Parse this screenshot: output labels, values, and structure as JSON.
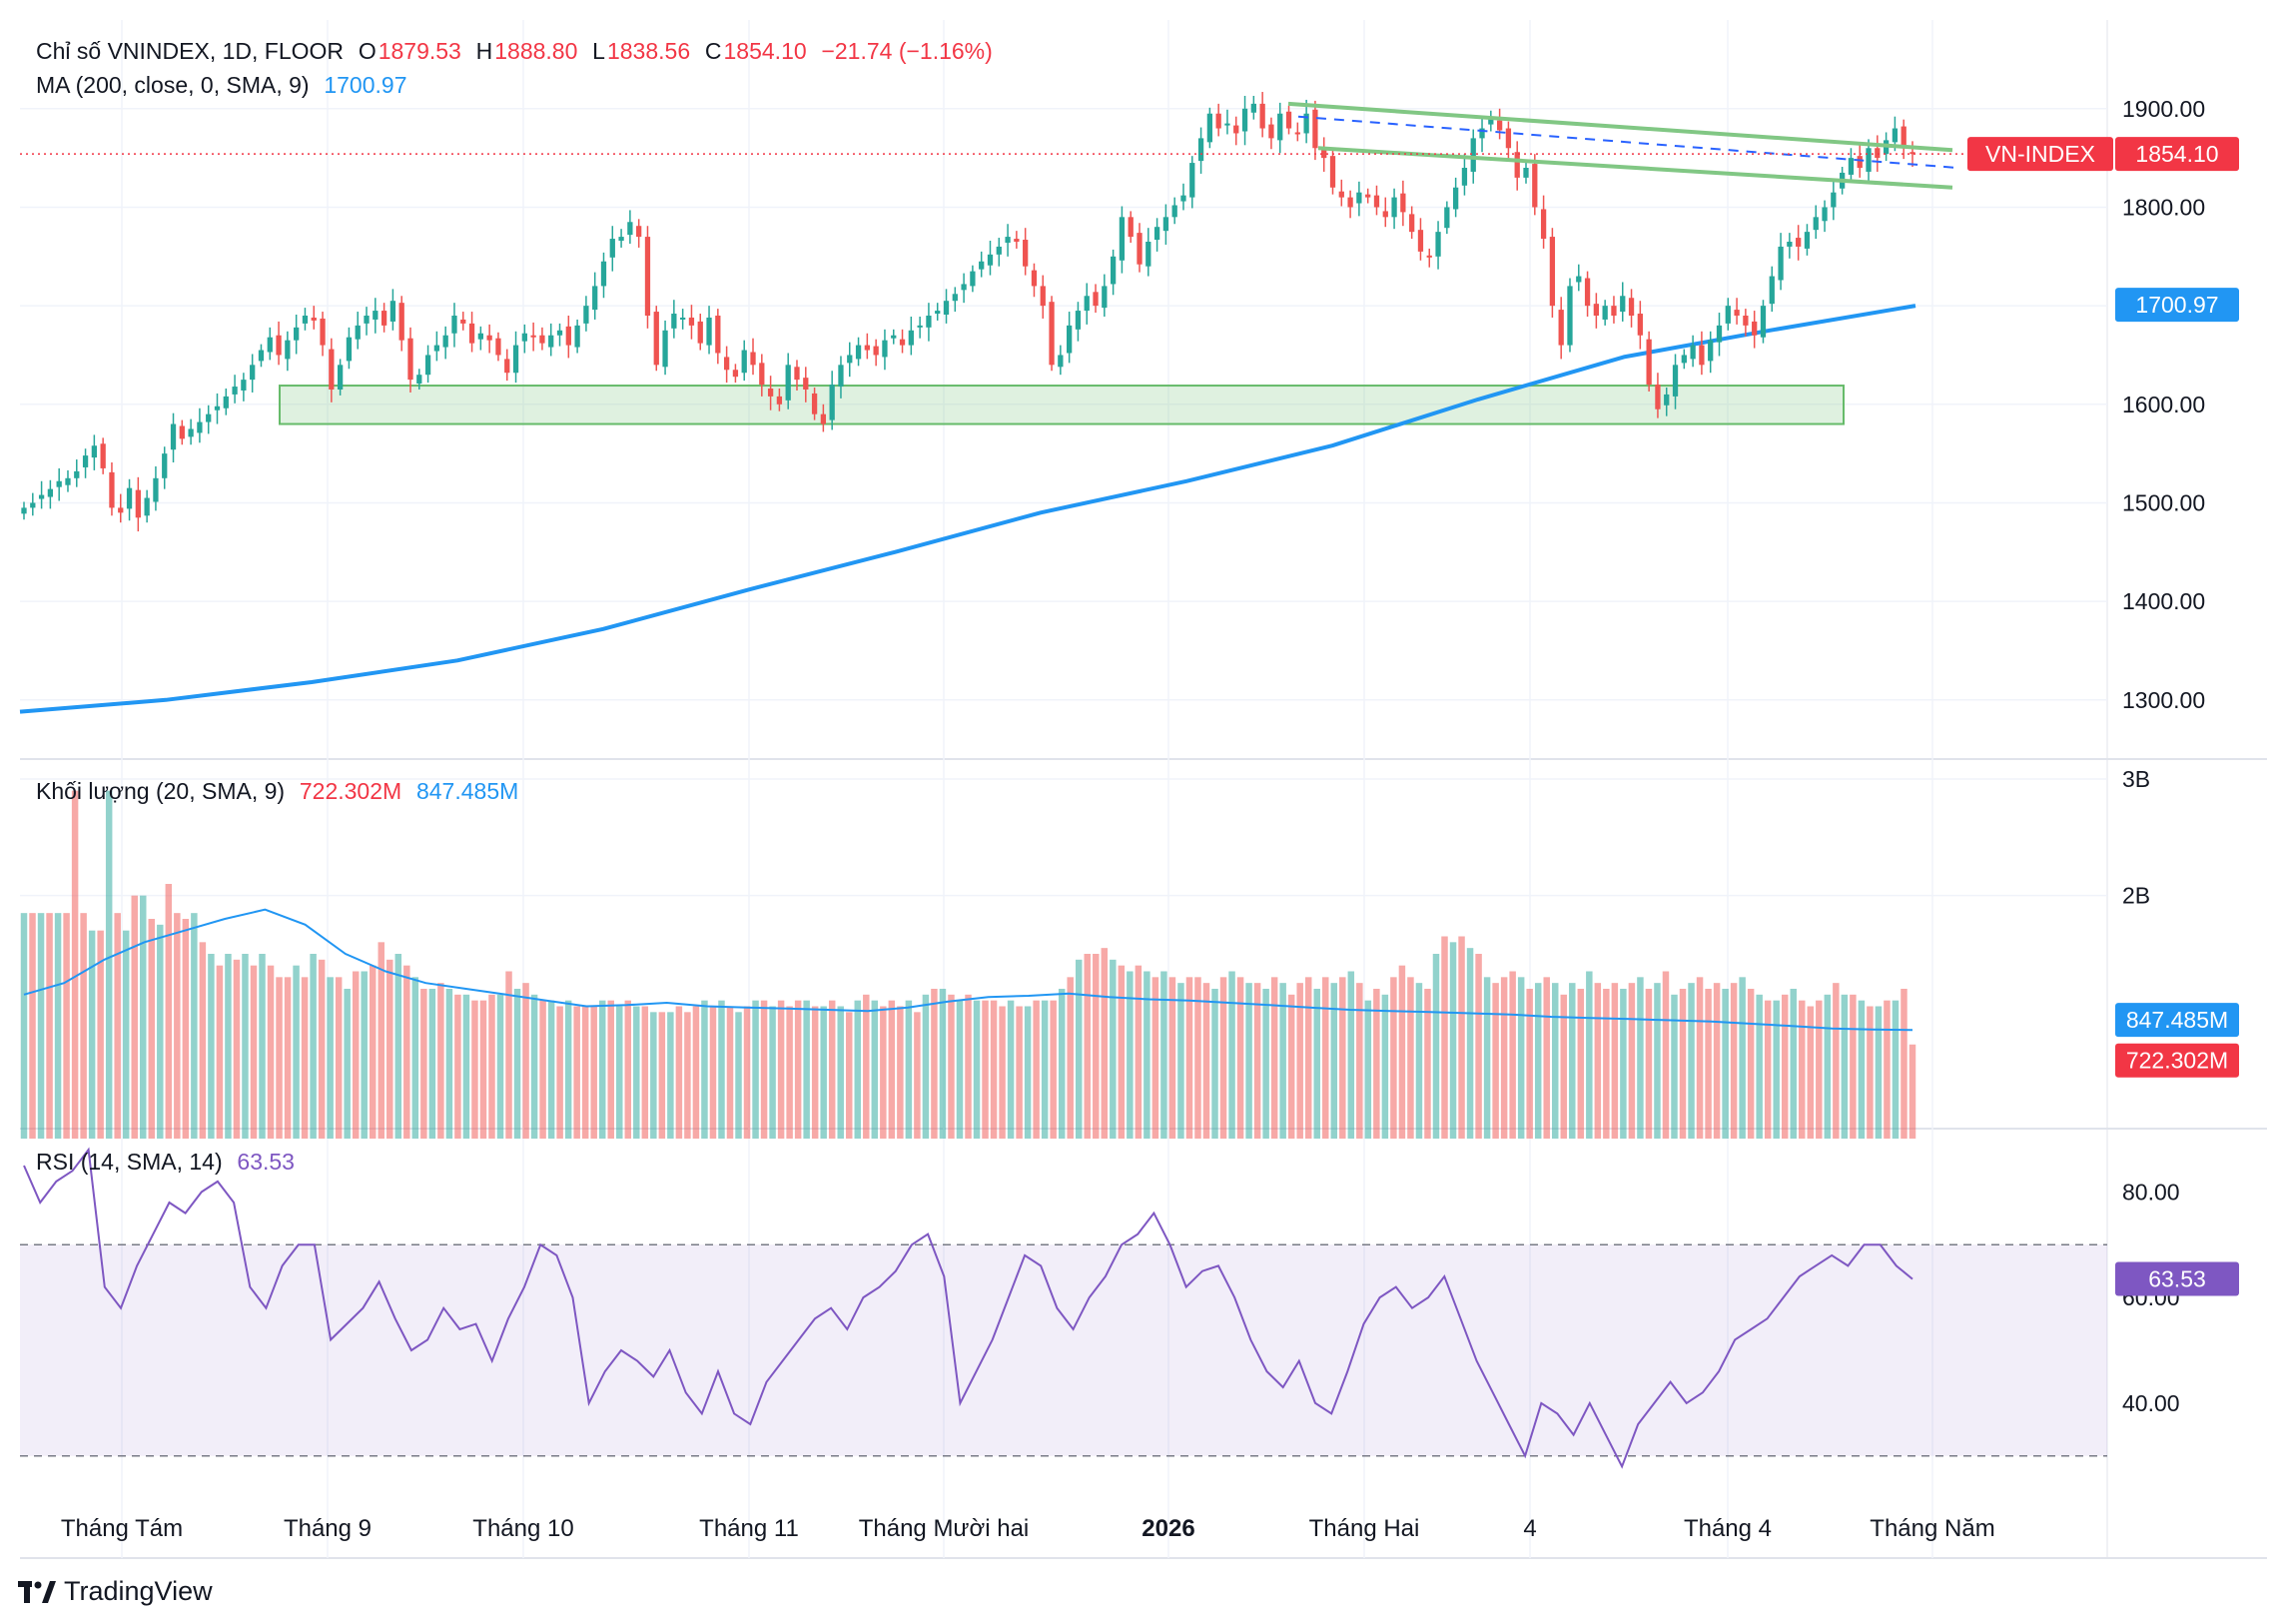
{
  "header": {
    "symbol": "Chỉ số VNINDEX, 1D, FLOOR",
    "o_label": "O",
    "o_val": "1879.53",
    "h_label": "H",
    "h_val": "1888.80",
    "l_label": "L",
    "l_val": "1838.56",
    "c_label": "C",
    "c_val": "1854.10",
    "change": "−21.74 (−1.16%)",
    "ma_label": "MA (200, close, 0, SMA, 9)",
    "ma_val": "1700.97",
    "vol_label": "Khối lượng (20, SMA, 9)",
    "vol_val": "722.302M",
    "vol_ma_val": "847.485M",
    "rsi_label": "RSI (14, SMA, 14)",
    "rsi_val": "63.53"
  },
  "badges": {
    "symbol_tag": "VN-INDEX",
    "price": "1854.10",
    "ma": "1700.97",
    "vol_ma": "847.485M",
    "vol": "722.302M",
    "rsi": "63.53"
  },
  "branding": {
    "name": "TradingView"
  },
  "colors": {
    "up": "#26a69a",
    "down": "#ef5350",
    "ma": "#2196f3",
    "rsi": "#7e57c2",
    "channel": "#81c784"
  },
  "chart_data": {
    "type": "candlestick",
    "price_axis": {
      "ticks": [
        "1900.00",
        "1800.00",
        "1700.00",
        "1600.00",
        "1500.00",
        "1400.00",
        "1300.00"
      ],
      "range": [
        1240,
        1990
      ]
    },
    "volume_axis": {
      "ticks": [
        "3B",
        "2B"
      ],
      "range": [
        0,
        3
      ]
    },
    "rsi_axis": {
      "ticks": [
        "80.00",
        "60.00",
        "40.00"
      ],
      "range": [
        22,
        92
      ],
      "bands": [
        70,
        30
      ]
    },
    "x_labels": [
      "Tháng Tám",
      "Tháng 9",
      "Tháng 10",
      "Tháng 11",
      "Tháng Mười hai",
      "2026",
      "Tháng Hai",
      "4",
      "Tháng 4",
      "Tháng Năm"
    ],
    "support_zone": [
      1580,
      1619
    ],
    "close": [
      1495,
      1500,
      1508,
      1514,
      1522,
      1525,
      1532,
      1548,
      1558,
      1535,
      1495,
      1490,
      1515,
      1485,
      1505,
      1525,
      1550,
      1580,
      1565,
      1575,
      1582,
      1590,
      1598,
      1608,
      1618,
      1625,
      1640,
      1655,
      1668,
      1650,
      1665,
      1678,
      1690,
      1685,
      1660,
      1615,
      1640,
      1668,
      1680,
      1690,
      1695,
      1680,
      1705,
      1665,
      1625,
      1630,
      1650,
      1660,
      1670,
      1690,
      1682,
      1662,
      1672,
      1665,
      1650,
      1632,
      1660,
      1672,
      1668,
      1662,
      1670,
      1675,
      1660,
      1680,
      1700,
      1720,
      1745,
      1768,
      1770,
      1785,
      1770,
      1690,
      1640,
      1675,
      1692,
      1688,
      1680,
      1662,
      1688,
      1652,
      1635,
      1628,
      1655,
      1640,
      1620,
      1608,
      1600,
      1640,
      1625,
      1615,
      1590,
      1580,
      1620,
      1640,
      1650,
      1660,
      1655,
      1650,
      1665,
      1670,
      1660,
      1675,
      1680,
      1690,
      1695,
      1705,
      1712,
      1722,
      1735,
      1745,
      1752,
      1760,
      1770,
      1765,
      1740,
      1720,
      1700,
      1640,
      1650,
      1680,
      1695,
      1710,
      1700,
      1720,
      1750,
      1790,
      1770,
      1742,
      1765,
      1780,
      1790,
      1802,
      1812,
      1845,
      1870,
      1895,
      1880,
      1885,
      1875,
      1900,
      1905,
      1880,
      1870,
      1895,
      1880,
      1875,
      1895,
      1860,
      1850,
      1820,
      1810,
      1800,
      1815,
      1810,
      1800,
      1790,
      1810,
      1795,
      1775,
      1755,
      1750,
      1775,
      1800,
      1820,
      1840,
      1870,
      1880,
      1890,
      1878,
      1860,
      1830,
      1840,
      1800,
      1768,
      1700,
      1660,
      1720,
      1730,
      1700,
      1690,
      1700,
      1690,
      1710,
      1690,
      1670,
      1620,
      1595,
      1610,
      1640,
      1650,
      1660,
      1640,
      1665,
      1680,
      1700,
      1690,
      1680,
      1670,
      1700,
      1730,
      1760,
      1765,
      1760,
      1775,
      1790,
      1800,
      1815,
      1835,
      1850,
      1840,
      1860,
      1850,
      1868,
      1880,
      1860,
      1854
    ],
    "ma200": [
      1288,
      1300,
      1318,
      1340,
      1372,
      1412,
      1450,
      1490,
      1522,
      1558,
      1605,
      1648,
      1675,
      1700
    ],
    "volume_bars_m": [
      1850,
      1850,
      1850,
      1850,
      1850,
      1850,
      2900,
      1850,
      1700,
      1700,
      2900,
      1850,
      1700,
      2000,
      2000,
      1800,
      1750,
      2100,
      1850,
      1800,
      1850,
      1600,
      1500,
      1400,
      1500,
      1450,
      1500,
      1400,
      1500,
      1400,
      1300,
      1300,
      1400,
      1300,
      1500,
      1450,
      1300,
      1300,
      1200,
      1350,
      1350,
      1400,
      1600,
      1450,
      1500,
      1400,
      1300,
      1200,
      1200,
      1250,
      1200,
      1150,
      1150,
      1100,
      1100,
      1150,
      1150,
      1350,
      1200,
      1250,
      1150,
      1100,
      1100,
      1050,
      1100,
      1050,
      1050,
      1050,
      1100,
      1100,
      1050,
      1100,
      1050,
      1050,
      1000,
      1000,
      1000,
      1050,
      1000,
      1050,
      1100,
      1050,
      1100,
      1050,
      1000,
      1050,
      1100,
      1100,
      1050,
      1100,
      1050,
      1100,
      1100,
      1050,
      1050,
      1100,
      1050,
      1000,
      1100,
      1150,
      1100,
      1050,
      1100,
      1050,
      1100,
      1000,
      1150,
      1200,
      1200,
      1150,
      1100,
      1150,
      1100,
      1100,
      1100,
      1050,
      1100,
      1050,
      1050,
      1100,
      1100,
      1100,
      1200,
      1300,
      1450,
      1500,
      1500,
      1550,
      1450,
      1400,
      1350,
      1400,
      1350,
      1300,
      1350,
      1300,
      1250,
      1300,
      1300,
      1250,
      1200,
      1300,
      1350,
      1300,
      1250,
      1250,
      1200,
      1300,
      1250,
      1150,
      1250,
      1300,
      1200,
      1300,
      1250,
      1300,
      1350,
      1250,
      1100,
      1200,
      1150,
      1300,
      1400,
      1300,
      1250,
      1200,
      1500,
      1650,
      1600,
      1650,
      1550,
      1500,
      1300,
      1250,
      1300,
      1350,
      1300,
      1200,
      1250,
      1300,
      1250,
      1150,
      1250,
      1200,
      1350,
      1250,
      1200,
      1250,
      1200,
      1250,
      1300,
      1200,
      1250,
      1350,
      1150,
      1200,
      1250,
      1300,
      1200,
      1250,
      1200,
      1250,
      1300,
      1200,
      1150,
      1100,
      1100,
      1150,
      1200,
      1100,
      1050,
      1100,
      1150,
      1250,
      1150,
      1150,
      1100,
      1050,
      1050,
      1100,
      1100,
      1200,
      722
    ],
    "volume_ma_m": [
      1150,
      1250,
      1450,
      1600,
      1700,
      1800,
      1880,
      1750,
      1500,
      1350,
      1250,
      1200,
      1150,
      1100,
      1050,
      1060,
      1080,
      1050,
      1040,
      1030,
      1020,
      1010,
      1040,
      1090,
      1130,
      1140,
      1160,
      1130,
      1110,
      1100,
      1080,
      1060,
      1040,
      1020,
      1010,
      1000,
      990,
      980,
      960,
      950,
      940,
      930,
      920,
      900,
      880,
      860,
      850,
      847
    ],
    "rsi": [
      85,
      78,
      82,
      84,
      88,
      62,
      58,
      66,
      72,
      78,
      76,
      80,
      82,
      78,
      62,
      58,
      66,
      70,
      70,
      52,
      55,
      58,
      63,
      56,
      50,
      52,
      58,
      54,
      55,
      48,
      56,
      62,
      70,
      68,
      60,
      40,
      46,
      50,
      48,
      45,
      50,
      42,
      38,
      46,
      38,
      36,
      44,
      48,
      52,
      56,
      58,
      54,
      60,
      62,
      65,
      70,
      72,
      64,
      40,
      46,
      52,
      60,
      68,
      66,
      58,
      54,
      60,
      64,
      70,
      72,
      76,
      70,
      62,
      65,
      66,
      60,
      52,
      46,
      43,
      48,
      40,
      38,
      46,
      55,
      60,
      62,
      58,
      60,
      64,
      56,
      48,
      42,
      36,
      30,
      40,
      38,
      34,
      40,
      34,
      28,
      36,
      40,
      44,
      40,
      42,
      46,
      52,
      54,
      56,
      60,
      64,
      66,
      68,
      66,
      70,
      70,
      66,
      63.5
    ]
  }
}
